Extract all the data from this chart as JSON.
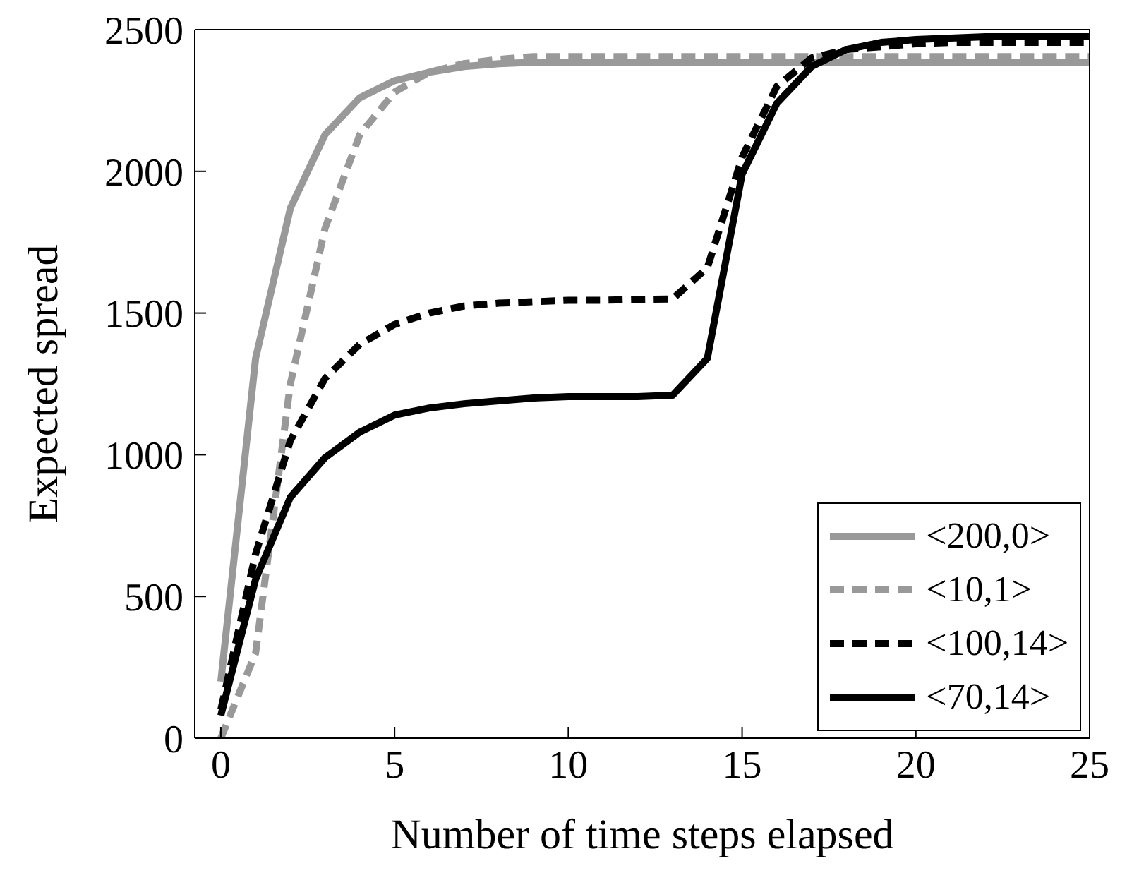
{
  "chart_data": {
    "type": "line",
    "xlabel": "Number of time steps elapsed",
    "ylabel": "Expected spread",
    "x": [
      0,
      1,
      2,
      3,
      4,
      5,
      6,
      7,
      8,
      9,
      10,
      11,
      12,
      13,
      14,
      15,
      16,
      17,
      18,
      19,
      20,
      21,
      22,
      23,
      24,
      25
    ],
    "xlim": [
      -0.75,
      25
    ],
    "xticks": [
      0,
      5,
      10,
      15,
      20,
      25
    ],
    "ylim": [
      0,
      2500
    ],
    "yticks": [
      0,
      500,
      1000,
      1500,
      2000,
      2500
    ],
    "grid": false,
    "legend": "bottom right",
    "marker": "none",
    "series": [
      {
        "name": "<200,0>",
        "color": "#999999",
        "line_style": "solid",
        "values": [
          200,
          1340,
          1870,
          2130,
          2260,
          2320,
          2350,
          2370,
          2380,
          2385,
          2385,
          2385,
          2385,
          2385,
          2385,
          2385,
          2385,
          2385,
          2385,
          2385,
          2385,
          2385,
          2385,
          2385,
          2385,
          2385
        ]
      },
      {
        "name": "<10,1>",
        "color": "#999999",
        "line_style": "dashed",
        "values": [
          0,
          300,
          1250,
          1800,
          2130,
          2280,
          2350,
          2380,
          2395,
          2405,
          2405,
          2405,
          2405,
          2405,
          2405,
          2405,
          2405,
          2405,
          2405,
          2405,
          2405,
          2405,
          2405,
          2405,
          2405,
          2405
        ]
      },
      {
        "name": "<100,14>",
        "color": "#000000",
        "line_style": "dashed",
        "values": [
          100,
          650,
          1050,
          1270,
          1390,
          1460,
          1500,
          1525,
          1535,
          1540,
          1545,
          1545,
          1548,
          1550,
          1660,
          2050,
          2300,
          2400,
          2430,
          2440,
          2450,
          2455,
          2455,
          2455,
          2455,
          2455
        ]
      },
      {
        "name": "<70,14>",
        "color": "#000000",
        "line_style": "solid",
        "values": [
          80,
          560,
          850,
          990,
          1080,
          1140,
          1165,
          1180,
          1190,
          1200,
          1205,
          1205,
          1205,
          1210,
          1340,
          1990,
          2240,
          2370,
          2430,
          2455,
          2465,
          2470,
          2475,
          2475,
          2475,
          2475
        ]
      }
    ]
  }
}
